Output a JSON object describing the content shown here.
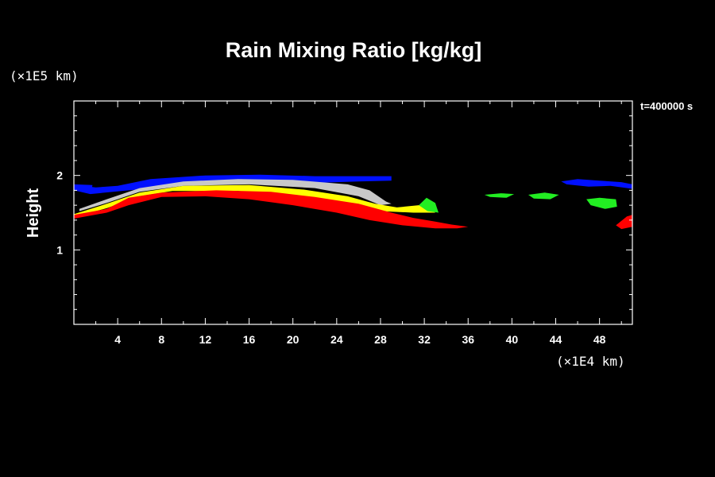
{
  "chart_data": {
    "type": "contour",
    "title": "Rain Mixing Ratio [kg/kg]",
    "ylabel": "Height",
    "xlabel": "",
    "x_unit": "(×1E4 km)",
    "y_unit": "(×1E5 km)",
    "time_label": "t=400000 s",
    "xlim": [
      0,
      51
    ],
    "ylim": [
      0,
      3
    ],
    "x_ticks": [
      4,
      8,
      12,
      16,
      20,
      24,
      28,
      32,
      36,
      40,
      44,
      48
    ],
    "y_ticks": [
      1,
      2
    ],
    "grid": false,
    "colors": {
      "background": "#000000",
      "blue": "#0010ff",
      "grey": "#c8c8c8",
      "yellow": "#ffff00",
      "red": "#ff0000",
      "green": "#22ee22"
    },
    "regions": [
      {
        "name": "blue-band",
        "color": "blue",
        "points": [
          [
            0,
            1.87
          ],
          [
            2,
            1.84
          ],
          [
            4,
            1.86
          ],
          [
            7,
            1.95
          ],
          [
            12,
            2.0
          ],
          [
            17,
            2.01
          ],
          [
            22,
            1.99
          ],
          [
            26,
            1.99
          ],
          [
            29,
            1.99
          ],
          [
            29,
            1.93
          ],
          [
            26,
            1.92
          ],
          [
            22,
            1.9
          ],
          [
            16,
            1.9
          ],
          [
            10,
            1.86
          ],
          [
            5,
            1.8
          ],
          [
            1.5,
            1.75
          ],
          [
            0,
            1.8
          ]
        ]
      },
      {
        "name": "blue-left-patch",
        "color": "blue",
        "points": [
          [
            0,
            1.88
          ],
          [
            1.7,
            1.87
          ],
          [
            1.6,
            1.8
          ],
          [
            0,
            1.8
          ]
        ]
      },
      {
        "name": "grey-band",
        "color": "grey",
        "points": [
          [
            0.5,
            1.55
          ],
          [
            3,
            1.68
          ],
          [
            6,
            1.83
          ],
          [
            10,
            1.92
          ],
          [
            15,
            1.95
          ],
          [
            20,
            1.94
          ],
          [
            25,
            1.88
          ],
          [
            27,
            1.8
          ],
          [
            28.5,
            1.65
          ],
          [
            29,
            1.62
          ],
          [
            28,
            1.6
          ],
          [
            26,
            1.72
          ],
          [
            22,
            1.83
          ],
          [
            16,
            1.88
          ],
          [
            10,
            1.86
          ],
          [
            6,
            1.78
          ],
          [
            3,
            1.63
          ],
          [
            0.5,
            1.52
          ]
        ]
      },
      {
        "name": "yellow-band",
        "color": "yellow",
        "points": [
          [
            0,
            1.48
          ],
          [
            3,
            1.62
          ],
          [
            6,
            1.77
          ],
          [
            10,
            1.86
          ],
          [
            16,
            1.87
          ],
          [
            21,
            1.81
          ],
          [
            25,
            1.72
          ],
          [
            27.5,
            1.62
          ],
          [
            29.5,
            1.57
          ],
          [
            31.5,
            1.6
          ],
          [
            32.5,
            1.57
          ],
          [
            33,
            1.5
          ],
          [
            31,
            1.5
          ],
          [
            28,
            1.52
          ],
          [
            25,
            1.6
          ],
          [
            20,
            1.73
          ],
          [
            15,
            1.79
          ],
          [
            9,
            1.79
          ],
          [
            6,
            1.72
          ],
          [
            3,
            1.56
          ],
          [
            0,
            1.44
          ]
        ]
      },
      {
        "name": "red-band",
        "color": "red",
        "points": [
          [
            0,
            1.47
          ],
          [
            3,
            1.55
          ],
          [
            5,
            1.7
          ],
          [
            8,
            1.77
          ],
          [
            13,
            1.8
          ],
          [
            18,
            1.78
          ],
          [
            22,
            1.71
          ],
          [
            26,
            1.62
          ],
          [
            29,
            1.5
          ],
          [
            31,
            1.43
          ],
          [
            33,
            1.38
          ],
          [
            34.5,
            1.34
          ],
          [
            36,
            1.31
          ],
          [
            35,
            1.29
          ],
          [
            33,
            1.29
          ],
          [
            30,
            1.33
          ],
          [
            27,
            1.4
          ],
          [
            24,
            1.5
          ],
          [
            20,
            1.6
          ],
          [
            16,
            1.68
          ],
          [
            12,
            1.72
          ],
          [
            8,
            1.71
          ],
          [
            5,
            1.6
          ],
          [
            3,
            1.5
          ],
          [
            0,
            1.42
          ]
        ]
      },
      {
        "name": "red-right-patch",
        "color": "red",
        "points": [
          [
            49.5,
            1.33
          ],
          [
            50.5,
            1.45
          ],
          [
            51,
            1.47
          ],
          [
            51,
            1.31
          ],
          [
            50,
            1.28
          ]
        ]
      },
      {
        "name": "green-patch-32",
        "color": "green",
        "points": [
          [
            31.5,
            1.6
          ],
          [
            32.2,
            1.7
          ],
          [
            33,
            1.63
          ],
          [
            33.3,
            1.5
          ],
          [
            32.3,
            1.52
          ]
        ]
      },
      {
        "name": "green-patch-39",
        "color": "green",
        "points": [
          [
            37.5,
            1.74
          ],
          [
            39,
            1.76
          ],
          [
            40.2,
            1.75
          ],
          [
            39.5,
            1.7
          ],
          [
            38,
            1.71
          ]
        ]
      },
      {
        "name": "green-patch-43",
        "color": "green",
        "points": [
          [
            41.5,
            1.74
          ],
          [
            43,
            1.77
          ],
          [
            44.3,
            1.74
          ],
          [
            43.5,
            1.68
          ],
          [
            42,
            1.69
          ]
        ]
      },
      {
        "name": "green-patch-48",
        "color": "green",
        "points": [
          [
            46.8,
            1.68
          ],
          [
            48,
            1.7
          ],
          [
            49.5,
            1.68
          ],
          [
            49.6,
            1.58
          ],
          [
            48.5,
            1.55
          ],
          [
            47.2,
            1.6
          ]
        ]
      },
      {
        "name": "blue-right-patch",
        "color": "blue",
        "points": [
          [
            44.5,
            1.92
          ],
          [
            46,
            1.95
          ],
          [
            48,
            1.93
          ],
          [
            50,
            1.91
          ],
          [
            51,
            1.88
          ],
          [
            51,
            1.82
          ],
          [
            49,
            1.86
          ],
          [
            47,
            1.85
          ],
          [
            45,
            1.88
          ]
        ]
      }
    ]
  }
}
